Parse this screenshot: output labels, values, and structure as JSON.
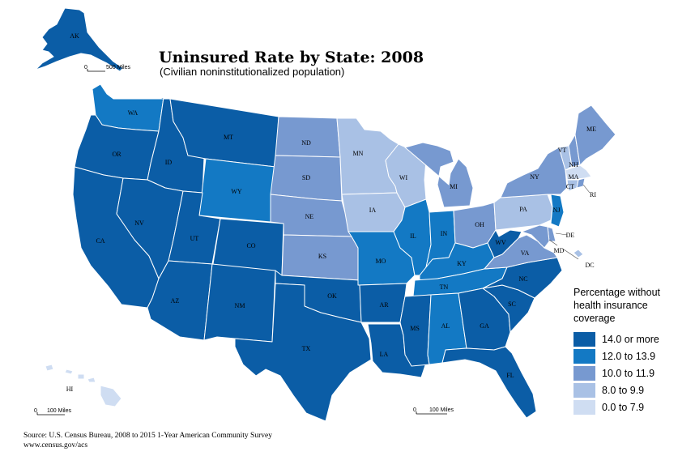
{
  "title": "Uninsured Rate by State: 2008",
  "subtitle": "(Civilian noninstitutionalized population)",
  "legend": {
    "title": "Percentage without health insurance coverage",
    "classes": [
      {
        "label": "14.0 or more",
        "color": "#0b5da6"
      },
      {
        "label": "12.0 to 13.9",
        "color": "#1379c4"
      },
      {
        "label": "10.0 to 11.9",
        "color": "#7799d0"
      },
      {
        "label": "8.0 to 9.9",
        "color": "#a9c1e5"
      },
      {
        "label": "0.0 to 7.9",
        "color": "#cfddf2"
      }
    ]
  },
  "states": {
    "AK": {
      "label": "AK",
      "class": 0
    },
    "WA": {
      "label": "WA",
      "class": 1
    },
    "OR": {
      "label": "OR",
      "class": 0
    },
    "CA": {
      "label": "CA",
      "class": 0
    },
    "ID": {
      "label": "ID",
      "class": 0
    },
    "NV": {
      "label": "NV",
      "class": 0
    },
    "MT": {
      "label": "MT",
      "class": 0
    },
    "WY": {
      "label": "WY",
      "class": 1
    },
    "UT": {
      "label": "UT",
      "class": 0
    },
    "AZ": {
      "label": "AZ",
      "class": 0
    },
    "CO": {
      "label": "CO",
      "class": 0
    },
    "NM": {
      "label": "NM",
      "class": 0
    },
    "ND": {
      "label": "ND",
      "class": 2
    },
    "SD": {
      "label": "SD",
      "class": 2
    },
    "NE": {
      "label": "NE",
      "class": 2
    },
    "KS": {
      "label": "KS",
      "class": 2
    },
    "OK": {
      "label": "OK",
      "class": 0
    },
    "TX": {
      "label": "TX",
      "class": 0
    },
    "MN": {
      "label": "MN",
      "class": 3
    },
    "IA": {
      "label": "IA",
      "class": 3
    },
    "MO": {
      "label": "MO",
      "class": 1
    },
    "AR": {
      "label": "AR",
      "class": 0
    },
    "LA": {
      "label": "LA",
      "class": 0
    },
    "WI": {
      "label": "WI",
      "class": 3
    },
    "IL": {
      "label": "IL",
      "class": 1
    },
    "MI": {
      "label": "MI",
      "class": 2
    },
    "IN": {
      "label": "IN",
      "class": 1
    },
    "OH": {
      "label": "OH",
      "class": 2
    },
    "KY": {
      "label": "KY",
      "class": 1
    },
    "TN": {
      "label": "TN",
      "class": 1
    },
    "MS": {
      "label": "MS",
      "class": 0
    },
    "AL": {
      "label": "AL",
      "class": 1
    },
    "GA": {
      "label": "GA",
      "class": 0
    },
    "FL": {
      "label": "FL",
      "class": 0
    },
    "SC": {
      "label": "SC",
      "class": 0
    },
    "NC": {
      "label": "NC",
      "class": 0
    },
    "VA": {
      "label": "VA",
      "class": 2
    },
    "WV": {
      "label": "WV",
      "class": 0
    },
    "PA": {
      "label": "PA",
      "class": 3
    },
    "NY": {
      "label": "NY",
      "class": 2
    },
    "NJ": {
      "label": "NJ",
      "class": 1
    },
    "DE": {
      "label": "DE",
      "class": 2
    },
    "MD": {
      "label": "MD",
      "class": 2
    },
    "DC": {
      "label": "DC",
      "class": 3
    },
    "VT": {
      "label": "VT",
      "class": 3
    },
    "NH": {
      "label": "NH",
      "class": 2
    },
    "ME": {
      "label": "ME",
      "class": 2
    },
    "MA": {
      "label": "MA",
      "class": 4
    },
    "CT": {
      "label": "CT",
      "class": 3
    },
    "RI": {
      "label": "RI",
      "class": 2
    },
    "HI": {
      "label": "HI",
      "class": 4
    }
  },
  "scales": {
    "alaska": "500 Miles",
    "alaska_zero": "0",
    "hawaii": "100 Miles",
    "hawaii_zero": "0",
    "conus": "100 Miles",
    "conus_zero": "0"
  },
  "source": {
    "line1": "Source: U.S. Census Bureau, 2008 to 2015 1-Year American Community Survey",
    "line2": "www.census.gov/acs"
  }
}
